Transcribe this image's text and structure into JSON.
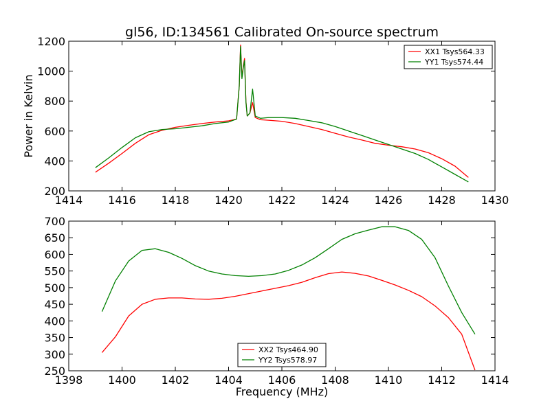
{
  "figure_title": "gl56, ID:134561 Calibrated On-source spectrum",
  "chart_data": [
    {
      "type": "line",
      "title": "gl56, ID:134561 Calibrated On-source spectrum",
      "xlabel": "",
      "ylabel": "Power in Kelvin",
      "xlim": [
        1414,
        1430
      ],
      "ylim": [
        200,
        1200
      ],
      "xticks": [
        1414,
        1416,
        1418,
        1420,
        1422,
        1424,
        1426,
        1428,
        1430
      ],
      "yticks": [
        200,
        400,
        600,
        800,
        1000,
        1200
      ],
      "legend_position": "top-right",
      "series": [
        {
          "name": "XX1 Tsys564.33",
          "color": "#ff0000",
          "points": [
            [
              1415.0,
              325
            ],
            [
              1415.5,
              385
            ],
            [
              1416.0,
              450
            ],
            [
              1416.5,
              518
            ],
            [
              1417.0,
              575
            ],
            [
              1417.5,
              605
            ],
            [
              1418.0,
              625
            ],
            [
              1418.5,
              638
            ],
            [
              1419.0,
              650
            ],
            [
              1419.5,
              660
            ],
            [
              1420.0,
              668
            ],
            [
              1420.3,
              680
            ],
            [
              1420.4,
              900
            ],
            [
              1420.45,
              1175
            ],
            [
              1420.5,
              960
            ],
            [
              1420.55,
              1030
            ],
            [
              1420.6,
              1085
            ],
            [
              1420.65,
              800
            ],
            [
              1420.7,
              700
            ],
            [
              1420.8,
              720
            ],
            [
              1420.9,
              790
            ],
            [
              1421.0,
              690
            ],
            [
              1421.2,
              675
            ],
            [
              1421.5,
              672
            ],
            [
              1422.0,
              665
            ],
            [
              1422.5,
              650
            ],
            [
              1423.0,
              630
            ],
            [
              1423.5,
              610
            ],
            [
              1424.0,
              585
            ],
            [
              1424.5,
              560
            ],
            [
              1425.0,
              540
            ],
            [
              1425.5,
              518
            ],
            [
              1426.0,
              505
            ],
            [
              1426.5,
              495
            ],
            [
              1427.0,
              480
            ],
            [
              1427.5,
              455
            ],
            [
              1428.0,
              415
            ],
            [
              1428.5,
              365
            ],
            [
              1429.0,
              290
            ]
          ]
        },
        {
          "name": "YY1 Tsys574.44",
          "color": "#008000",
          "points": [
            [
              1415.0,
              355
            ],
            [
              1415.5,
              420
            ],
            [
              1416.0,
              490
            ],
            [
              1416.5,
              555
            ],
            [
              1417.0,
              595
            ],
            [
              1417.5,
              610
            ],
            [
              1418.0,
              615
            ],
            [
              1418.5,
              625
            ],
            [
              1419.0,
              635
            ],
            [
              1419.5,
              650
            ],
            [
              1420.0,
              660
            ],
            [
              1420.3,
              680
            ],
            [
              1420.4,
              900
            ],
            [
              1420.45,
              1165
            ],
            [
              1420.5,
              950
            ],
            [
              1420.55,
              1020
            ],
            [
              1420.6,
              1070
            ],
            [
              1420.65,
              795
            ],
            [
              1420.7,
              700
            ],
            [
              1420.8,
              720
            ],
            [
              1420.9,
              880
            ],
            [
              1421.0,
              700
            ],
            [
              1421.2,
              685
            ],
            [
              1421.5,
              690
            ],
            [
              1422.0,
              690
            ],
            [
              1422.5,
              685
            ],
            [
              1423.0,
              670
            ],
            [
              1423.5,
              655
            ],
            [
              1424.0,
              630
            ],
            [
              1424.5,
              600
            ],
            [
              1425.0,
              570
            ],
            [
              1425.5,
              540
            ],
            [
              1426.0,
              510
            ],
            [
              1426.5,
              480
            ],
            [
              1427.0,
              450
            ],
            [
              1427.5,
              410
            ],
            [
              1428.0,
              360
            ],
            [
              1428.5,
              310
            ],
            [
              1429.0,
              260
            ]
          ]
        }
      ]
    },
    {
      "type": "line",
      "title": "",
      "xlabel": "Frequency (MHz)",
      "ylabel": "",
      "xlim": [
        1398,
        1414
      ],
      "ylim": [
        250,
        700
      ],
      "xticks": [
        1398,
        1400,
        1402,
        1404,
        1406,
        1408,
        1410,
        1412,
        1414
      ],
      "yticks": [
        250,
        300,
        350,
        400,
        450,
        500,
        550,
        600,
        650,
        700
      ],
      "legend_position": "bottom-center",
      "series": [
        {
          "name": "XX2 Tsys464.90",
          "color": "#ff0000",
          "points": [
            [
              1399.25,
              305
            ],
            [
              1399.75,
              352
            ],
            [
              1400.25,
              415
            ],
            [
              1400.75,
              450
            ],
            [
              1401.25,
              465
            ],
            [
              1401.75,
              469
            ],
            [
              1402.25,
              469
            ],
            [
              1402.75,
              466
            ],
            [
              1403.25,
              465
            ],
            [
              1403.75,
              468
            ],
            [
              1404.25,
              474
            ],
            [
              1404.75,
              482
            ],
            [
              1405.25,
              490
            ],
            [
              1405.75,
              498
            ],
            [
              1406.25,
              506
            ],
            [
              1406.75,
              516
            ],
            [
              1407.25,
              530
            ],
            [
              1407.75,
              542
            ],
            [
              1408.25,
              547
            ],
            [
              1408.75,
              543
            ],
            [
              1409.25,
              535
            ],
            [
              1409.75,
              522
            ],
            [
              1410.25,
              508
            ],
            [
              1410.75,
              492
            ],
            [
              1411.25,
              473
            ],
            [
              1411.75,
              445
            ],
            [
              1412.25,
              410
            ],
            [
              1412.75,
              360
            ],
            [
              1413.25,
              252
            ]
          ]
        },
        {
          "name": "YY2 Tsys578.97",
          "color": "#008000",
          "points": [
            [
              1399.25,
              428
            ],
            [
              1399.75,
              520
            ],
            [
              1400.25,
              580
            ],
            [
              1400.75,
              612
            ],
            [
              1401.25,
              617
            ],
            [
              1401.75,
              606
            ],
            [
              1402.25,
              588
            ],
            [
              1402.75,
              566
            ],
            [
              1403.25,
              550
            ],
            [
              1403.75,
              541
            ],
            [
              1404.25,
              536
            ],
            [
              1404.75,
              534
            ],
            [
              1405.25,
              536
            ],
            [
              1405.75,
              541
            ],
            [
              1406.25,
              552
            ],
            [
              1406.75,
              568
            ],
            [
              1407.25,
              590
            ],
            [
              1407.75,
              617
            ],
            [
              1408.25,
              645
            ],
            [
              1408.75,
              662
            ],
            [
              1409.25,
              673
            ],
            [
              1409.75,
              683
            ],
            [
              1410.25,
              683
            ],
            [
              1410.75,
              672
            ],
            [
              1411.25,
              645
            ],
            [
              1411.75,
              590
            ],
            [
              1412.25,
              505
            ],
            [
              1412.75,
              425
            ],
            [
              1413.25,
              360
            ]
          ]
        }
      ]
    }
  ]
}
